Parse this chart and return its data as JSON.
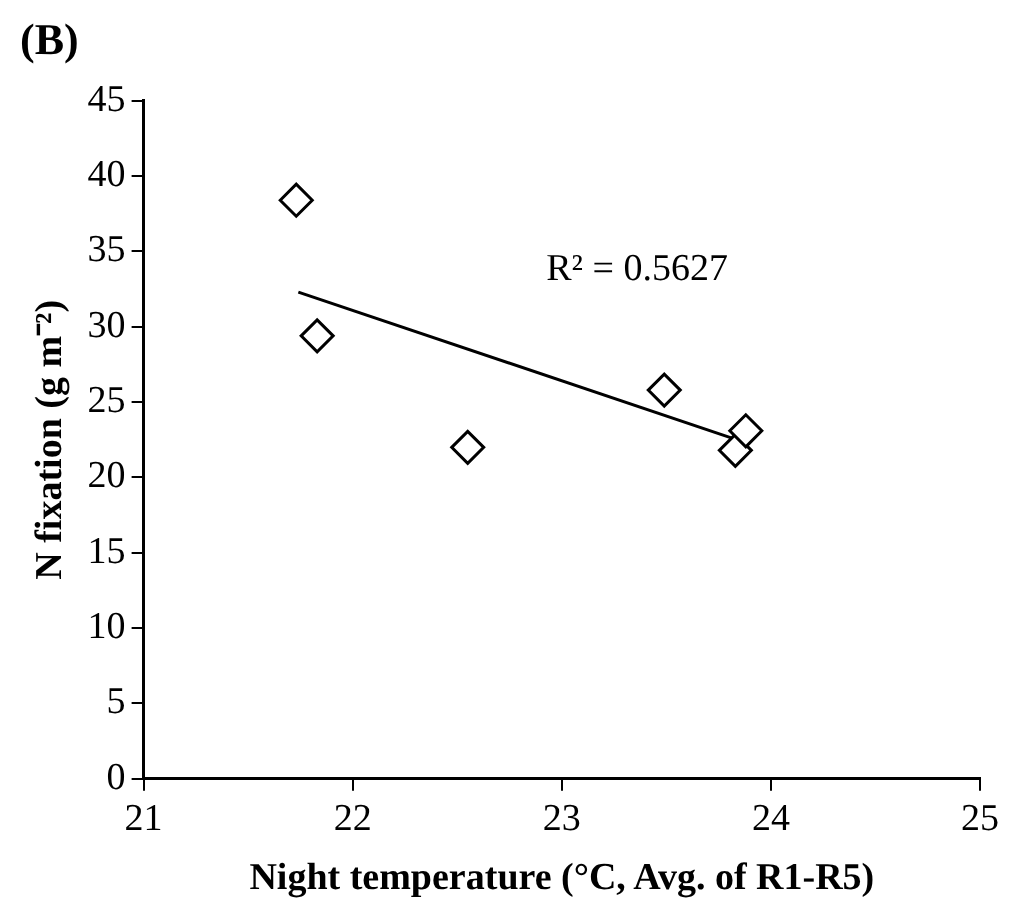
{
  "chart_data": {
    "type": "scatter",
    "title": "(B)",
    "xlabel": "Night temperature (°C, Avg. of R1-R5)",
    "ylabel": "N fixation (g m⁻²)",
    "xlim": [
      21,
      25
    ],
    "xticks": [
      21,
      22,
      23,
      24,
      25
    ],
    "ylim": [
      0,
      45
    ],
    "yticks": [
      0,
      5,
      10,
      15,
      20,
      25,
      30,
      35,
      40,
      45
    ],
    "grid": false,
    "legend": false,
    "marker": "diamond",
    "annotations": [
      "R² = 0.5627"
    ],
    "series": [
      {
        "type": "scatter",
        "color": "#000000",
        "x": [
          21.73,
          21.83,
          22.55,
          23.49,
          23.83,
          23.88
        ],
        "values": [
          38.4,
          29.4,
          22.0,
          25.8,
          21.8,
          23.1
        ]
      },
      {
        "type": "line",
        "color": "#000000",
        "marker": "none",
        "line_style": "solid",
        "x": [
          21.74,
          23.86
        ],
        "values": [
          32.3,
          22.4
        ]
      }
    ]
  }
}
